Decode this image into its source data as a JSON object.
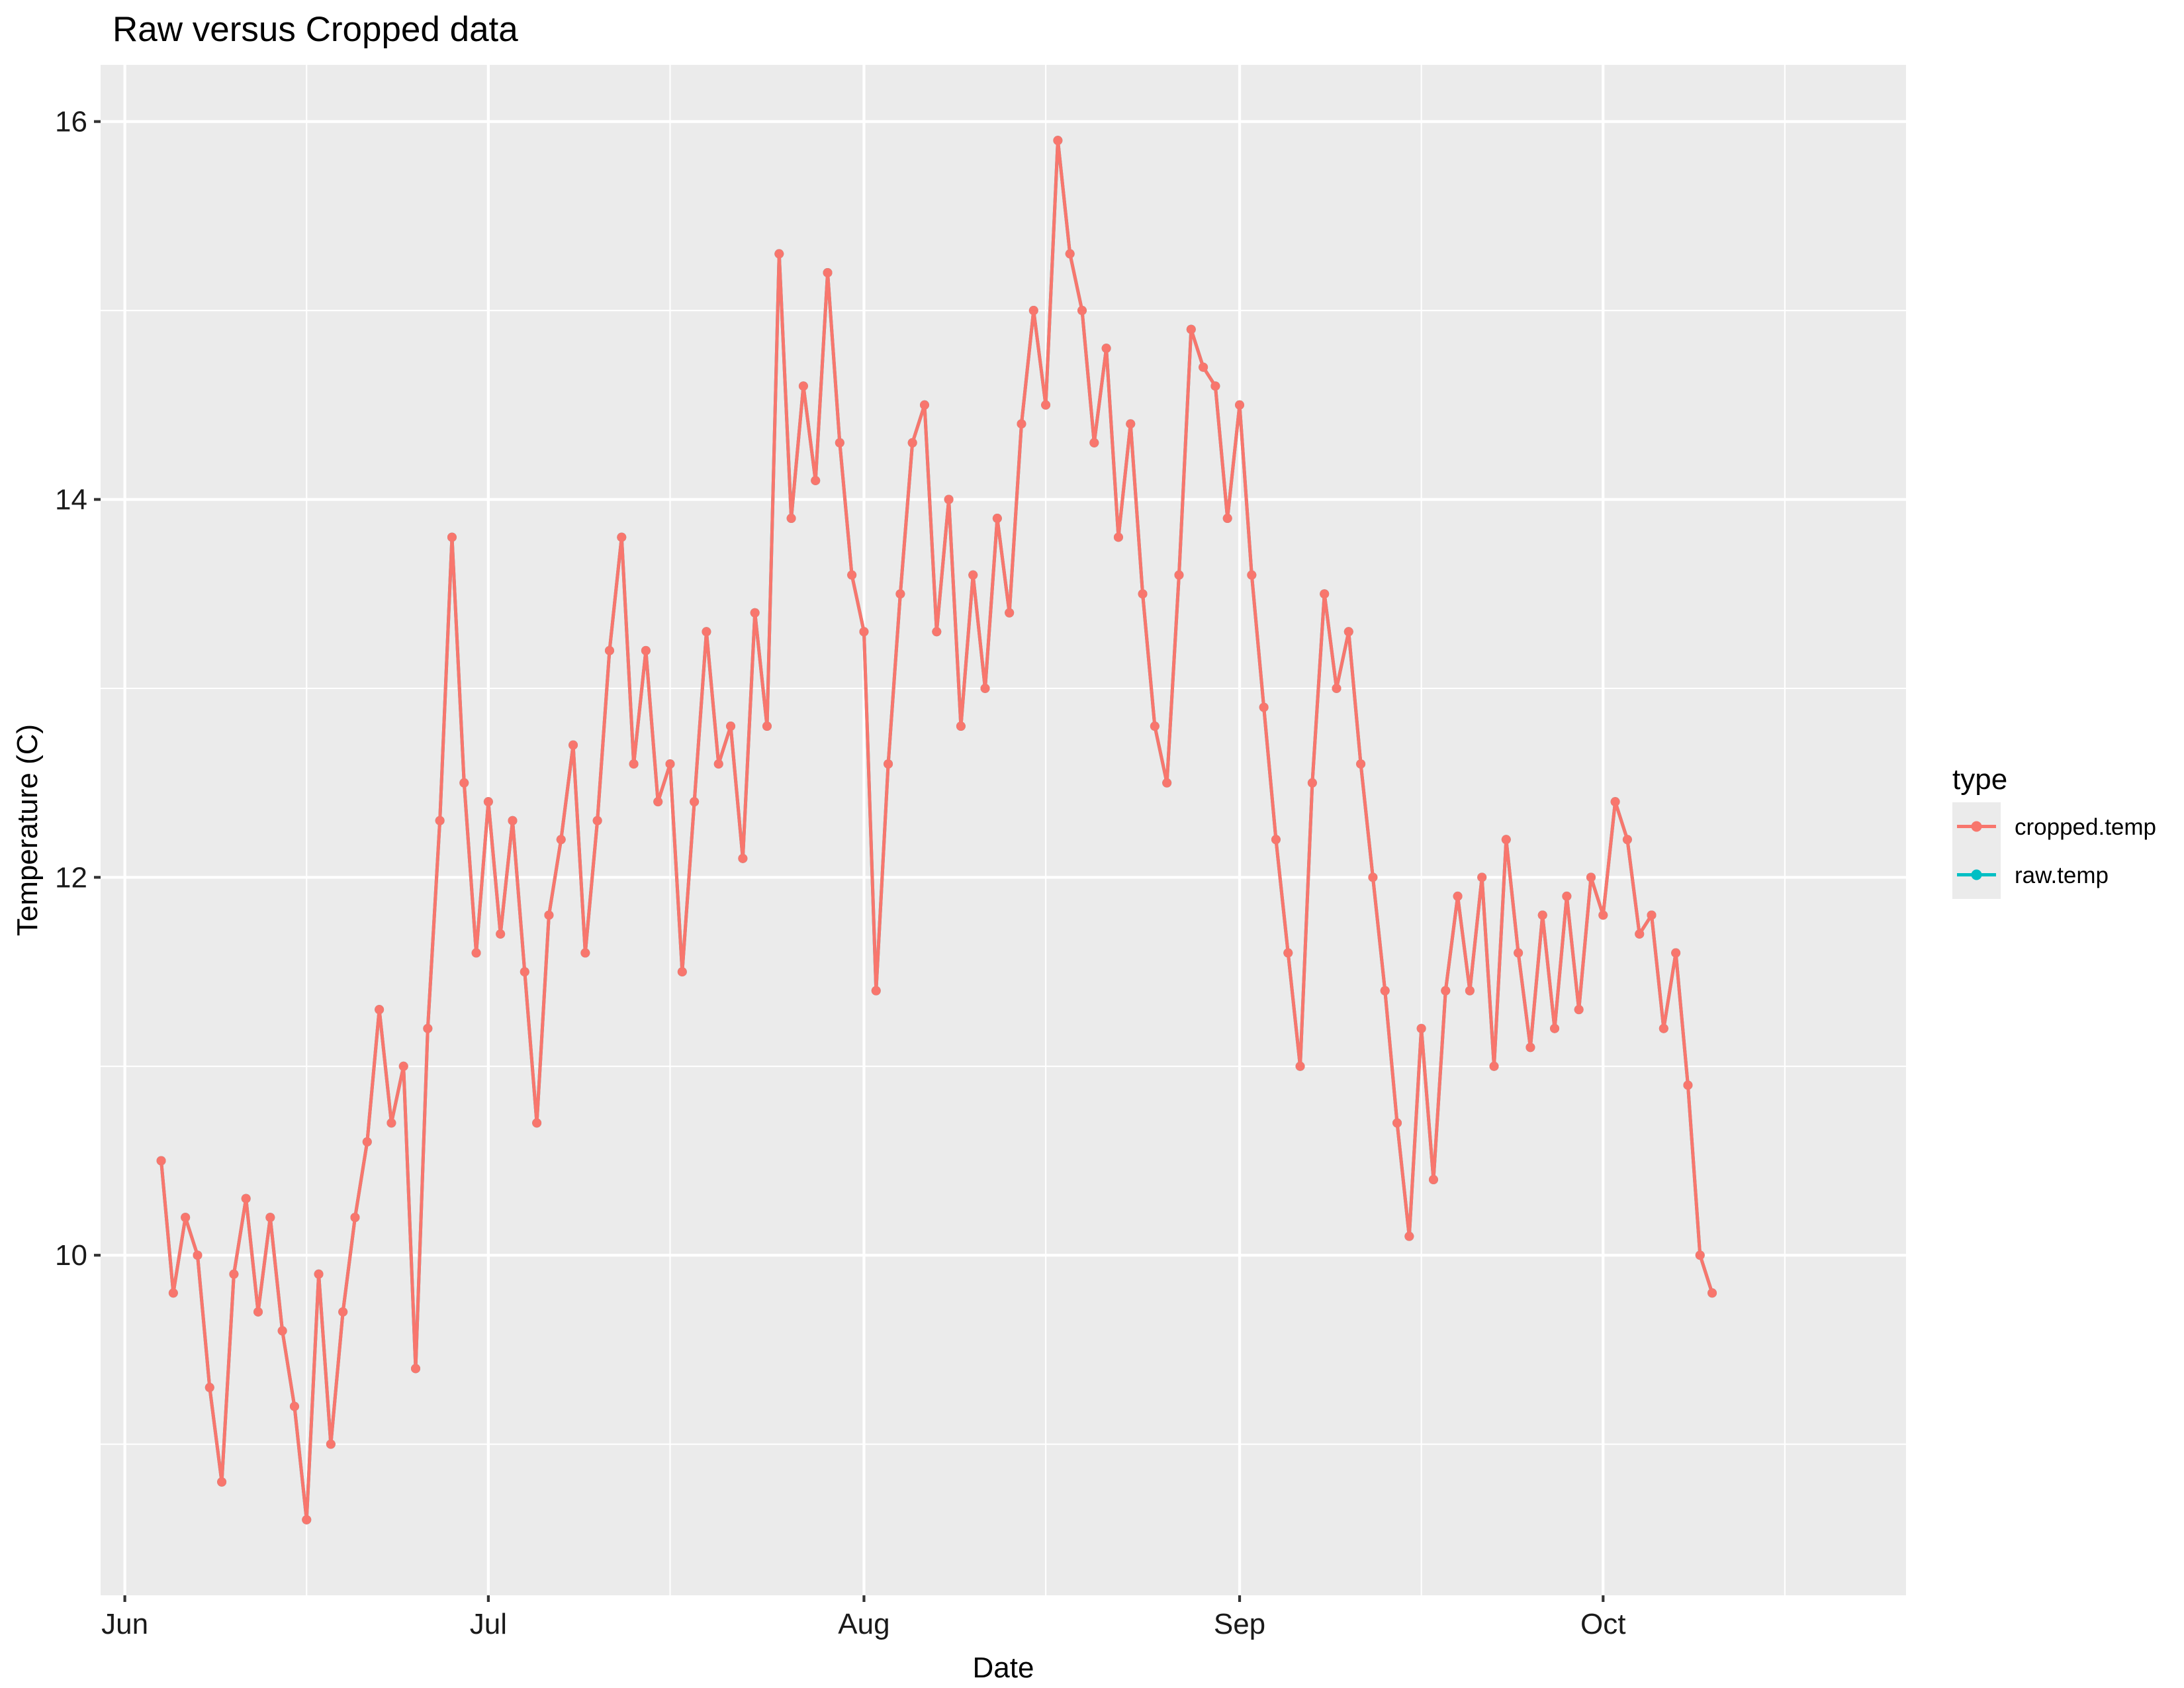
{
  "chart_data": {
    "type": "line",
    "title": "Raw versus Cropped data",
    "xlabel": "Date",
    "ylabel": "Temperature (C)",
    "x_axis": {
      "kind": "date",
      "range": [
        "2019-05-30",
        "2019-10-26"
      ],
      "major_ticks": [
        {
          "date": "2019-06-01",
          "label": "Jun"
        },
        {
          "date": "2019-07-01",
          "label": "Jul"
        },
        {
          "date": "2019-08-01",
          "label": "Aug"
        },
        {
          "date": "2019-09-01",
          "label": "Sep"
        },
        {
          "date": "2019-10-01",
          "label": "Oct"
        }
      ],
      "minor_ticks": [
        "2019-05-16",
        "2019-06-16",
        "2019-07-16",
        "2019-08-16",
        "2019-09-16",
        "2019-10-16"
      ]
    },
    "y_axis": {
      "range": [
        8.2,
        16.3
      ],
      "major_ticks": [
        10,
        12,
        14,
        16
      ],
      "minor_ticks": [
        9,
        11,
        13,
        15
      ]
    },
    "grid": true,
    "legend": {
      "title": "type",
      "position": "right",
      "entries": [
        {
          "name": "cropped.temp",
          "color": "#F8766D"
        },
        {
          "name": "raw.temp",
          "color": "#00BFC4"
        }
      ]
    },
    "series": [
      {
        "name": "raw.temp",
        "color": "#00BFC4",
        "points": [
          [
            "2019-06-04",
            10.5
          ],
          [
            "2019-06-05",
            9.8
          ],
          [
            "2019-06-06",
            10.2
          ],
          [
            "2019-06-07",
            10.0
          ],
          [
            "2019-06-08",
            9.3
          ],
          [
            "2019-06-09",
            8.8
          ],
          [
            "2019-06-10",
            9.9
          ],
          [
            "2019-06-11",
            10.3
          ],
          [
            "2019-06-12",
            9.7
          ],
          [
            "2019-06-13",
            10.2
          ],
          [
            "2019-06-14",
            9.6
          ],
          [
            "2019-06-15",
            9.2
          ],
          [
            "2019-06-16",
            8.6
          ],
          [
            "2019-06-17",
            9.9
          ],
          [
            "2019-06-18",
            9.0
          ],
          [
            "2019-06-19",
            9.7
          ],
          [
            "2019-06-20",
            10.2
          ],
          [
            "2019-06-21",
            10.6
          ],
          [
            "2019-06-22",
            11.3
          ],
          [
            "2019-06-23",
            10.7
          ],
          [
            "2019-06-24",
            11.0
          ],
          [
            "2019-06-25",
            9.4
          ],
          [
            "2019-06-26",
            11.2
          ],
          [
            "2019-06-27",
            12.3
          ],
          [
            "2019-06-28",
            13.8
          ],
          [
            "2019-06-29",
            12.5
          ],
          [
            "2019-06-30",
            11.6
          ],
          [
            "2019-07-01",
            12.4
          ],
          [
            "2019-07-02",
            11.7
          ],
          [
            "2019-07-03",
            12.3
          ],
          [
            "2019-07-04",
            11.5
          ],
          [
            "2019-07-05",
            10.7
          ],
          [
            "2019-07-06",
            11.8
          ],
          [
            "2019-07-07",
            12.2
          ],
          [
            "2019-07-08",
            12.7
          ],
          [
            "2019-07-09",
            11.6
          ],
          [
            "2019-07-10",
            12.3
          ],
          [
            "2019-07-11",
            13.2
          ],
          [
            "2019-07-12",
            13.8
          ],
          [
            "2019-07-13",
            12.6
          ],
          [
            "2019-07-14",
            13.2
          ],
          [
            "2019-07-15",
            12.4
          ],
          [
            "2019-07-16",
            12.6
          ],
          [
            "2019-07-17",
            11.5
          ],
          [
            "2019-07-18",
            12.4
          ],
          [
            "2019-07-19",
            13.3
          ],
          [
            "2019-07-20",
            12.6
          ],
          [
            "2019-07-21",
            12.8
          ],
          [
            "2019-07-22",
            12.1
          ],
          [
            "2019-07-23",
            13.4
          ],
          [
            "2019-07-24",
            12.8
          ],
          [
            "2019-07-25",
            15.3
          ],
          [
            "2019-07-26",
            13.9
          ],
          [
            "2019-07-27",
            14.6
          ],
          [
            "2019-07-28",
            14.1
          ],
          [
            "2019-07-29",
            15.2
          ],
          [
            "2019-07-30",
            14.3
          ],
          [
            "2019-07-31",
            13.6
          ],
          [
            "2019-08-01",
            13.3
          ],
          [
            "2019-08-02",
            11.4
          ],
          [
            "2019-08-03",
            12.6
          ],
          [
            "2019-08-04",
            13.5
          ],
          [
            "2019-08-05",
            14.3
          ],
          [
            "2019-08-06",
            14.5
          ],
          [
            "2019-08-07",
            13.3
          ],
          [
            "2019-08-08",
            14.0
          ],
          [
            "2019-08-09",
            12.8
          ],
          [
            "2019-08-10",
            13.6
          ],
          [
            "2019-08-11",
            13.0
          ],
          [
            "2019-08-12",
            13.9
          ],
          [
            "2019-08-13",
            13.4
          ],
          [
            "2019-08-14",
            14.4
          ],
          [
            "2019-08-15",
            15.0
          ],
          [
            "2019-08-16",
            14.5
          ],
          [
            "2019-08-17",
            15.9
          ],
          [
            "2019-08-18",
            15.3
          ],
          [
            "2019-08-19",
            15.0
          ],
          [
            "2019-08-20",
            14.3
          ],
          [
            "2019-08-21",
            14.8
          ],
          [
            "2019-08-22",
            13.8
          ],
          [
            "2019-08-23",
            14.4
          ],
          [
            "2019-08-24",
            13.5
          ],
          [
            "2019-08-25",
            12.8
          ],
          [
            "2019-08-26",
            12.5
          ],
          [
            "2019-08-27",
            13.6
          ],
          [
            "2019-08-28",
            14.9
          ],
          [
            "2019-08-29",
            14.7
          ],
          [
            "2019-08-30",
            14.6
          ],
          [
            "2019-08-31",
            13.9
          ],
          [
            "2019-09-01",
            14.5
          ],
          [
            "2019-09-02",
            13.6
          ],
          [
            "2019-09-03",
            12.9
          ],
          [
            "2019-09-04",
            12.2
          ],
          [
            "2019-09-05",
            11.6
          ],
          [
            "2019-09-06",
            11.0
          ],
          [
            "2019-09-07",
            12.5
          ],
          [
            "2019-09-08",
            13.5
          ],
          [
            "2019-09-09",
            13.0
          ],
          [
            "2019-09-10",
            13.3
          ],
          [
            "2019-09-11",
            12.6
          ],
          [
            "2019-09-12",
            12.0
          ],
          [
            "2019-09-13",
            11.4
          ],
          [
            "2019-09-14",
            10.7
          ],
          [
            "2019-09-15",
            10.1
          ],
          [
            "2019-09-16",
            11.2
          ],
          [
            "2019-09-17",
            10.4
          ],
          [
            "2019-09-18",
            11.4
          ],
          [
            "2019-09-19",
            11.9
          ],
          [
            "2019-09-20",
            11.4
          ],
          [
            "2019-09-21",
            12.0
          ],
          [
            "2019-09-22",
            11.0
          ],
          [
            "2019-09-23",
            12.2
          ],
          [
            "2019-09-24",
            11.6
          ],
          [
            "2019-09-25",
            11.1
          ],
          [
            "2019-09-26",
            11.8
          ],
          [
            "2019-09-27",
            11.2
          ],
          [
            "2019-09-28",
            11.9
          ],
          [
            "2019-09-29",
            11.3
          ],
          [
            "2019-09-30",
            12.0
          ],
          [
            "2019-10-01",
            11.8
          ],
          [
            "2019-10-02",
            12.4
          ],
          [
            "2019-10-03",
            12.2
          ],
          [
            "2019-10-04",
            11.7
          ],
          [
            "2019-10-05",
            11.8
          ],
          [
            "2019-10-06",
            11.2
          ],
          [
            "2019-10-07",
            11.6
          ],
          [
            "2019-10-08",
            10.9
          ],
          [
            "2019-10-09",
            10.0
          ],
          [
            "2019-10-10",
            9.8
          ]
        ]
      },
      {
        "name": "cropped.temp",
        "color": "#F8766D",
        "points": [
          [
            "2019-06-04",
            10.5
          ],
          [
            "2019-06-05",
            9.8
          ],
          [
            "2019-06-06",
            10.2
          ],
          [
            "2019-06-07",
            10.0
          ],
          [
            "2019-06-08",
            9.3
          ],
          [
            "2019-06-09",
            8.8
          ],
          [
            "2019-06-10",
            9.9
          ],
          [
            "2019-06-11",
            10.3
          ],
          [
            "2019-06-12",
            9.7
          ],
          [
            "2019-06-13",
            10.2
          ],
          [
            "2019-06-14",
            9.6
          ],
          [
            "2019-06-15",
            9.2
          ],
          [
            "2019-06-16",
            8.6
          ],
          [
            "2019-06-17",
            9.9
          ],
          [
            "2019-06-18",
            9.0
          ],
          [
            "2019-06-19",
            9.7
          ],
          [
            "2019-06-20",
            10.2
          ],
          [
            "2019-06-21",
            10.6
          ],
          [
            "2019-06-22",
            11.3
          ],
          [
            "2019-06-23",
            10.7
          ],
          [
            "2019-06-24",
            11.0
          ],
          [
            "2019-06-25",
            9.4
          ],
          [
            "2019-06-26",
            11.2
          ],
          [
            "2019-06-27",
            12.3
          ],
          [
            "2019-06-28",
            13.8
          ],
          [
            "2019-06-29",
            12.5
          ],
          [
            "2019-06-30",
            11.6
          ],
          [
            "2019-07-01",
            12.4
          ],
          [
            "2019-07-02",
            11.7
          ],
          [
            "2019-07-03",
            12.3
          ],
          [
            "2019-07-04",
            11.5
          ],
          [
            "2019-07-05",
            10.7
          ],
          [
            "2019-07-06",
            11.8
          ],
          [
            "2019-07-07",
            12.2
          ],
          [
            "2019-07-08",
            12.7
          ],
          [
            "2019-07-09",
            11.6
          ],
          [
            "2019-07-10",
            12.3
          ],
          [
            "2019-07-11",
            13.2
          ],
          [
            "2019-07-12",
            13.8
          ],
          [
            "2019-07-13",
            12.6
          ],
          [
            "2019-07-14",
            13.2
          ],
          [
            "2019-07-15",
            12.4
          ],
          [
            "2019-07-16",
            12.6
          ],
          [
            "2019-07-17",
            11.5
          ],
          [
            "2019-07-18",
            12.4
          ],
          [
            "2019-07-19",
            13.3
          ],
          [
            "2019-07-20",
            12.6
          ],
          [
            "2019-07-21",
            12.8
          ],
          [
            "2019-07-22",
            12.1
          ],
          [
            "2019-07-23",
            13.4
          ],
          [
            "2019-07-24",
            12.8
          ],
          [
            "2019-07-25",
            15.3
          ],
          [
            "2019-07-26",
            13.9
          ],
          [
            "2019-07-27",
            14.6
          ],
          [
            "2019-07-28",
            14.1
          ],
          [
            "2019-07-29",
            15.2
          ],
          [
            "2019-07-30",
            14.3
          ],
          [
            "2019-07-31",
            13.6
          ],
          [
            "2019-08-01",
            13.3
          ],
          [
            "2019-08-02",
            11.4
          ],
          [
            "2019-08-03",
            12.6
          ],
          [
            "2019-08-04",
            13.5
          ],
          [
            "2019-08-05",
            14.3
          ],
          [
            "2019-08-06",
            14.5
          ],
          [
            "2019-08-07",
            13.3
          ],
          [
            "2019-08-08",
            14.0
          ],
          [
            "2019-08-09",
            12.8
          ],
          [
            "2019-08-10",
            13.6
          ],
          [
            "2019-08-11",
            13.0
          ],
          [
            "2019-08-12",
            13.9
          ],
          [
            "2019-08-13",
            13.4
          ],
          [
            "2019-08-14",
            14.4
          ],
          [
            "2019-08-15",
            15.0
          ],
          [
            "2019-08-16",
            14.5
          ],
          [
            "2019-08-17",
            15.9
          ],
          [
            "2019-08-18",
            15.3
          ],
          [
            "2019-08-19",
            15.0
          ],
          [
            "2019-08-20",
            14.3
          ],
          [
            "2019-08-21",
            14.8
          ],
          [
            "2019-08-22",
            13.8
          ],
          [
            "2019-08-23",
            14.4
          ],
          [
            "2019-08-24",
            13.5
          ],
          [
            "2019-08-25",
            12.8
          ],
          [
            "2019-08-26",
            12.5
          ],
          [
            "2019-08-27",
            13.6
          ],
          [
            "2019-08-28",
            14.9
          ],
          [
            "2019-08-29",
            14.7
          ],
          [
            "2019-08-30",
            14.6
          ],
          [
            "2019-08-31",
            13.9
          ],
          [
            "2019-09-01",
            14.5
          ],
          [
            "2019-09-02",
            13.6
          ],
          [
            "2019-09-03",
            12.9
          ],
          [
            "2019-09-04",
            12.2
          ],
          [
            "2019-09-05",
            11.6
          ],
          [
            "2019-09-06",
            11.0
          ],
          [
            "2019-09-07",
            12.5
          ],
          [
            "2019-09-08",
            13.5
          ],
          [
            "2019-09-09",
            13.0
          ],
          [
            "2019-09-10",
            13.3
          ],
          [
            "2019-09-11",
            12.6
          ],
          [
            "2019-09-12",
            12.0
          ],
          [
            "2019-09-13",
            11.4
          ],
          [
            "2019-09-14",
            10.7
          ],
          [
            "2019-09-15",
            10.1
          ],
          [
            "2019-09-16",
            11.2
          ],
          [
            "2019-09-17",
            10.4
          ],
          [
            "2019-09-18",
            11.4
          ],
          [
            "2019-09-19",
            11.9
          ],
          [
            "2019-09-20",
            11.4
          ],
          [
            "2019-09-21",
            12.0
          ],
          [
            "2019-09-22",
            11.0
          ],
          [
            "2019-09-23",
            12.2
          ],
          [
            "2019-09-24",
            11.6
          ],
          [
            "2019-09-25",
            11.1
          ],
          [
            "2019-09-26",
            11.8
          ],
          [
            "2019-09-27",
            11.2
          ],
          [
            "2019-09-28",
            11.9
          ],
          [
            "2019-09-29",
            11.3
          ],
          [
            "2019-09-30",
            12.0
          ],
          [
            "2019-10-01",
            11.8
          ],
          [
            "2019-10-02",
            12.4
          ],
          [
            "2019-10-03",
            12.2
          ],
          [
            "2019-10-04",
            11.7
          ],
          [
            "2019-10-05",
            11.8
          ],
          [
            "2019-10-06",
            11.2
          ],
          [
            "2019-10-07",
            11.6
          ],
          [
            "2019-10-08",
            10.9
          ],
          [
            "2019-10-09",
            10.0
          ],
          [
            "2019-10-10",
            9.8
          ]
        ]
      }
    ]
  }
}
